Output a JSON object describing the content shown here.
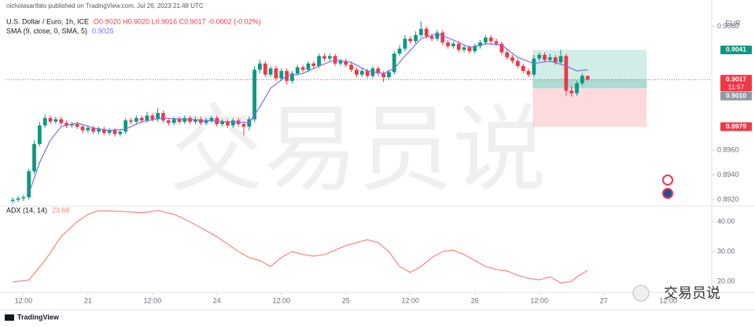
{
  "header": {
    "published": "nicholasarifalo published on TradingView.com, Jul 26, 2023 21:48 UTC",
    "symbol": "U.S. Dollar / Euro, 1h, ICE",
    "ohlc": "O0.9020 H0.9020 L0.9016 C0.9017 -0.0002 (-0.02%)",
    "sma_label": "SMA (9, close, 0, SMA, 5)",
    "sma_value": "0.9025"
  },
  "chart_data": [
    {
      "type": "candlestick",
      "currency": "EUR",
      "watermark": "交易员说",
      "up_color": "#089981",
      "down_color": "#f23645",
      "xlim": [
        -1.2,
        130.1
      ],
      "xticks": [
        {
          "value": 2,
          "label": "12:00"
        },
        {
          "value": 14,
          "label": "21"
        },
        {
          "value": 26,
          "label": "12:00"
        },
        {
          "value": 38,
          "label": "24"
        },
        {
          "value": 50,
          "label": "12:00"
        },
        {
          "value": 62,
          "label": "25"
        },
        {
          "value": 74,
          "label": "12:00"
        },
        {
          "value": 86,
          "label": "26"
        },
        {
          "value": 98,
          "label": "12:00"
        },
        {
          "value": 110,
          "label": "27"
        },
        {
          "value": 122,
          "label": "12:00"
        }
      ],
      "ylim": [
        0.89124,
        0.90686
      ],
      "yticks": [
        {
          "value": 0.892,
          "label": "0.8920"
        },
        {
          "value": 0.894,
          "label": "0.8940"
        },
        {
          "value": 0.896,
          "label": "0.8960"
        },
        {
          "value": 0.906,
          "label": "0.9060"
        }
      ],
      "ohlc": [
        [
          0.8919,
          0.8922,
          0.8917,
          0.892
        ],
        [
          0.892,
          0.8923,
          0.8918,
          0.8921
        ],
        [
          0.8921,
          0.8924,
          0.8919,
          0.8922
        ],
        [
          0.8922,
          0.8945,
          0.892,
          0.8943
        ],
        [
          0.8943,
          0.8968,
          0.8941,
          0.8965
        ],
        [
          0.8965,
          0.8983,
          0.8963,
          0.898
        ],
        [
          0.898,
          0.8989,
          0.8978,
          0.8986
        ],
        [
          0.8986,
          0.8988,
          0.8981,
          0.8983
        ],
        [
          0.8983,
          0.8987,
          0.8981,
          0.8985
        ],
        [
          0.8985,
          0.8987,
          0.898,
          0.8982
        ],
        [
          0.8982,
          0.8984,
          0.8978,
          0.898
        ],
        [
          0.898,
          0.8983,
          0.8978,
          0.8981
        ],
        [
          0.8981,
          0.8983,
          0.8977,
          0.8979
        ],
        [
          0.8979,
          0.8981,
          0.8974,
          0.8976
        ],
        [
          0.8976,
          0.898,
          0.8974,
          0.8978
        ],
        [
          0.8978,
          0.898,
          0.8973,
          0.8975
        ],
        [
          0.8975,
          0.8979,
          0.8973,
          0.8977
        ],
        [
          0.8977,
          0.8979,
          0.8972,
          0.8974
        ],
        [
          0.8974,
          0.8978,
          0.8972,
          0.8976
        ],
        [
          0.8976,
          0.8978,
          0.8971,
          0.8973
        ],
        [
          0.8973,
          0.8977,
          0.8971,
          0.8975
        ],
        [
          0.8975,
          0.8986,
          0.8973,
          0.8984
        ],
        [
          0.8984,
          0.8986,
          0.8981,
          0.8983
        ],
        [
          0.8983,
          0.8988,
          0.8981,
          0.8986
        ],
        [
          0.8986,
          0.8988,
          0.8982,
          0.8984
        ],
        [
          0.8984,
          0.8991,
          0.8982,
          0.8988
        ],
        [
          0.8988,
          0.899,
          0.8983,
          0.8985
        ],
        [
          0.8985,
          0.8994,
          0.8983,
          0.899
        ],
        [
          0.899,
          0.8992,
          0.8982,
          0.8984
        ],
        [
          0.8984,
          0.8986,
          0.898,
          0.8982
        ],
        [
          0.8982,
          0.8987,
          0.898,
          0.8985
        ],
        [
          0.8985,
          0.8987,
          0.8981,
          0.8983
        ],
        [
          0.8983,
          0.8988,
          0.8981,
          0.8986
        ],
        [
          0.8986,
          0.8988,
          0.8981,
          0.8983
        ],
        [
          0.8983,
          0.8987,
          0.8981,
          0.8985
        ],
        [
          0.8985,
          0.8987,
          0.898,
          0.8982
        ],
        [
          0.8982,
          0.8986,
          0.898,
          0.8984
        ],
        [
          0.8984,
          0.8988,
          0.8982,
          0.8986
        ],
        [
          0.8986,
          0.8988,
          0.8979,
          0.8981
        ],
        [
          0.8981,
          0.8985,
          0.8979,
          0.8983
        ],
        [
          0.8983,
          0.8985,
          0.8978,
          0.898
        ],
        [
          0.898,
          0.8986,
          0.8978,
          0.8984
        ],
        [
          0.8984,
          0.8986,
          0.8979,
          0.8981
        ],
        [
          0.8981,
          0.8983,
          0.8972,
          0.8979
        ],
        [
          0.8979,
          0.8987,
          0.8976,
          0.8985
        ],
        [
          0.8985,
          0.9028,
          0.8983,
          0.9025
        ],
        [
          0.9025,
          0.9033,
          0.9022,
          0.903
        ],
        [
          0.903,
          0.9032,
          0.9019,
          0.9021
        ],
        [
          0.9021,
          0.9028,
          0.9019,
          0.9026
        ],
        [
          0.9026,
          0.9028,
          0.9016,
          0.9018
        ],
        [
          0.9018,
          0.9026,
          0.9016,
          0.9024
        ],
        [
          0.9024,
          0.9026,
          0.9013,
          0.9016
        ],
        [
          0.9016,
          0.9024,
          0.9014,
          0.9022
        ],
        [
          0.9022,
          0.9029,
          0.902,
          0.9027
        ],
        [
          0.9027,
          0.9029,
          0.9023,
          0.9025
        ],
        [
          0.9025,
          0.9032,
          0.9023,
          0.903
        ],
        [
          0.903,
          0.9032,
          0.9026,
          0.9028
        ],
        [
          0.9028,
          0.9038,
          0.9026,
          0.9036
        ],
        [
          0.9036,
          0.9038,
          0.9032,
          0.9034
        ],
        [
          0.9034,
          0.9038,
          0.9032,
          0.9036
        ],
        [
          0.9036,
          0.9038,
          0.9028,
          0.903
        ],
        [
          0.903,
          0.9034,
          0.9028,
          0.9032
        ],
        [
          0.9032,
          0.9034,
          0.9027,
          0.9029
        ],
        [
          0.9029,
          0.9031,
          0.9023,
          0.9025
        ],
        [
          0.9025,
          0.9027,
          0.9019,
          0.9021
        ],
        [
          0.9021,
          0.9026,
          0.9019,
          0.9024
        ],
        [
          0.9024,
          0.9026,
          0.9018,
          0.902
        ],
        [
          0.902,
          0.9028,
          0.9018,
          0.9026
        ],
        [
          0.9026,
          0.9028,
          0.902,
          0.9022
        ],
        [
          0.9022,
          0.9024,
          0.9015,
          0.9019
        ],
        [
          0.9019,
          0.9025,
          0.9017,
          0.9023
        ],
        [
          0.9023,
          0.904,
          0.9021,
          0.9038
        ],
        [
          0.9038,
          0.9045,
          0.9036,
          0.9042
        ],
        [
          0.9042,
          0.9053,
          0.904,
          0.905
        ],
        [
          0.905,
          0.9052,
          0.9046,
          0.9048
        ],
        [
          0.9048,
          0.9056,
          0.9046,
          0.9053
        ],
        [
          0.9053,
          0.9064,
          0.9051,
          0.9058
        ],
        [
          0.9058,
          0.906,
          0.905,
          0.9052
        ],
        [
          0.9052,
          0.9054,
          0.9048,
          0.905
        ],
        [
          0.905,
          0.9057,
          0.9048,
          0.9055
        ],
        [
          0.9055,
          0.9057,
          0.9045,
          0.9047
        ],
        [
          0.9047,
          0.9049,
          0.9042,
          0.9044
        ],
        [
          0.9044,
          0.9048,
          0.9042,
          0.9046
        ],
        [
          0.9046,
          0.9048,
          0.9039,
          0.9041
        ],
        [
          0.9041,
          0.9045,
          0.9039,
          0.9043
        ],
        [
          0.9043,
          0.9045,
          0.9038,
          0.904
        ],
        [
          0.904,
          0.9046,
          0.9038,
          0.9044
        ],
        [
          0.9044,
          0.9049,
          0.9042,
          0.9047
        ],
        [
          0.9047,
          0.9053,
          0.9045,
          0.9051
        ],
        [
          0.9051,
          0.9053,
          0.9046,
          0.9048
        ],
        [
          0.9048,
          0.905,
          0.9044,
          0.9046
        ],
        [
          0.9046,
          0.9048,
          0.9037,
          0.9039
        ],
        [
          0.9039,
          0.9041,
          0.9033,
          0.9035
        ],
        [
          0.9035,
          0.9037,
          0.903,
          0.9032
        ],
        [
          0.9032,
          0.9034,
          0.9026,
          0.9028
        ],
        [
          0.9028,
          0.903,
          0.9022,
          0.9024
        ],
        [
          0.9024,
          0.9026,
          0.9019,
          0.9021
        ],
        [
          0.9021,
          0.9037,
          0.9019,
          0.9034
        ],
        [
          0.9034,
          0.9039,
          0.9032,
          0.9037
        ],
        [
          0.9037,
          0.9039,
          0.9031,
          0.9033
        ],
        [
          0.9033,
          0.9038,
          0.9031,
          0.9035
        ],
        [
          0.9035,
          0.9037,
          0.9029,
          0.9031
        ],
        [
          0.9031,
          0.9041,
          0.9029,
          0.9036
        ],
        [
          0.9036,
          0.9038,
          0.9004,
          0.9008
        ],
        [
          0.9008,
          0.9012,
          0.9003,
          0.9006
        ],
        [
          0.9006,
          0.9016,
          0.9004,
          0.9014
        ],
        [
          0.9014,
          0.9022,
          0.9012,
          0.902
        ],
        [
          0.902,
          0.902,
          0.9016,
          0.9017
        ]
      ],
      "sma": {
        "color": "#7b6fe6",
        "x": [
          3,
          5,
          7,
          9,
          12,
          15,
          18,
          21,
          24,
          28,
          32,
          36,
          40,
          44,
          46,
          48,
          51,
          54,
          57,
          60,
          63,
          66,
          69,
          71,
          73,
          76,
          79,
          82,
          85,
          88,
          91,
          94,
          97,
          100,
          103,
          105,
          107
        ],
        "values": [
          0.8925,
          0.895,
          0.8968,
          0.8979,
          0.8982,
          0.8978,
          0.8976,
          0.8977,
          0.8983,
          0.8986,
          0.8985,
          0.8984,
          0.8983,
          0.8982,
          0.8995,
          0.901,
          0.902,
          0.9022,
          0.9028,
          0.9033,
          0.9031,
          0.9024,
          0.9022,
          0.9026,
          0.9036,
          0.905,
          0.9054,
          0.9049,
          0.9043,
          0.9046,
          0.9045,
          0.9035,
          0.903,
          0.9032,
          0.9028,
          0.9024,
          0.9025
        ]
      },
      "position": {
        "target": 0.9041,
        "entry": {
          "value": 0.901,
          "label": "0.9010"
        },
        "stop": 0.8979,
        "start": 96.8,
        "end": 118
      },
      "last_price": 0.9017,
      "countdown": "11:57"
    },
    {
      "type": "line",
      "title": "ADX (14, 14)",
      "last_label": "23.68",
      "color": "#f7847f",
      "ylim": [
        16.3,
        45.3
      ],
      "yticks": [
        {
          "value": 20,
          "label": "20.00"
        },
        {
          "value": 30,
          "label": "30.00"
        },
        {
          "value": 40,
          "label": "40.00"
        }
      ],
      "x": [
        0,
        3,
        6,
        9,
        12,
        14,
        16,
        20,
        24,
        27,
        30,
        33,
        38,
        42,
        44,
        46,
        48,
        50,
        52,
        54,
        56,
        58,
        60,
        62,
        64,
        66,
        68,
        70,
        72,
        74,
        76,
        78,
        80,
        82,
        84,
        86,
        88,
        90,
        92,
        94,
        96,
        98,
        100,
        102,
        104,
        105,
        107
      ],
      "values": [
        19.8,
        20.5,
        27,
        35,
        40,
        42.5,
        43.7,
        43.5,
        43,
        43.8,
        42.5,
        40,
        35,
        30,
        28,
        27,
        25,
        28,
        30,
        29,
        28.5,
        29,
        30.5,
        32,
        33,
        34,
        33,
        30,
        25,
        23,
        25,
        28,
        30,
        30.5,
        29,
        27,
        25,
        24,
        23.5,
        22,
        21,
        20.5,
        21.5,
        19.5,
        20,
        21.5,
        23.68
      ]
    }
  ],
  "footer": {
    "brand": "TradingView",
    "logo_text": "交易员说"
  }
}
